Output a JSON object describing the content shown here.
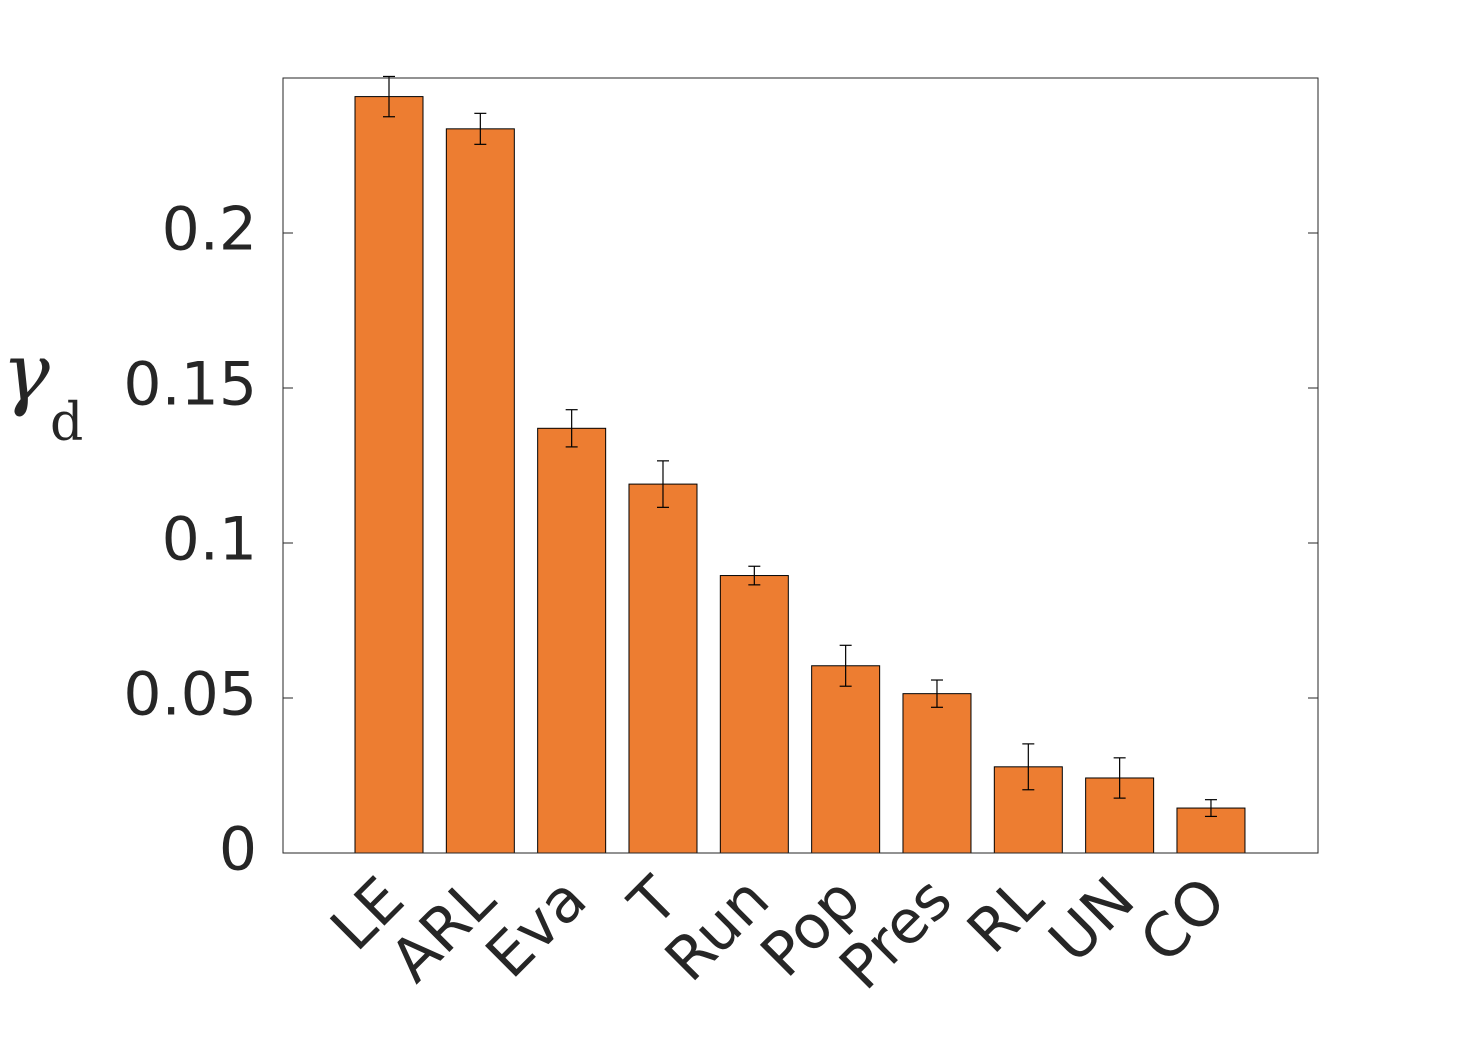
{
  "chart_data": {
    "type": "bar",
    "y_label": "γ",
    "y_label_subscript": "d",
    "categories": [
      "LE",
      "ARL",
      "Eva",
      "T",
      "Run",
      "Pop",
      "Pres",
      "RL",
      "UN",
      "CO"
    ],
    "values": [
      0.244,
      0.2336,
      0.137,
      0.119,
      0.0895,
      0.0604,
      0.0514,
      0.0278,
      0.0242,
      0.0145
    ],
    "errors": [
      0.0065,
      0.005,
      0.006,
      0.0075,
      0.003,
      0.0066,
      0.0044,
      0.0074,
      0.0065,
      0.0027
    ],
    "color": "#ed7d31",
    "ylim": [
      0,
      0.25
    ],
    "yticks": [
      0,
      0.05,
      0.1,
      0.15,
      0.2
    ]
  }
}
